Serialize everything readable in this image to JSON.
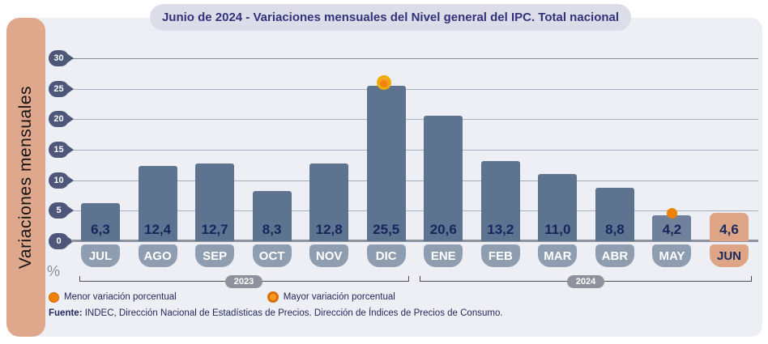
{
  "header": {
    "title": "Junio de 2024 - Variaciones mensuales del Nivel general del IPC. Total nacional"
  },
  "sidebar": {
    "label": "Variaciones mensuales"
  },
  "chart_data": {
    "type": "bar",
    "title": "Junio de 2024 - Variaciones mensuales del Nivel general del IPC. Total nacional",
    "ylabel": "Variaciones mensuales",
    "unit": "%",
    "ylim": [
      0,
      30
    ],
    "yticks": [
      0,
      5,
      10,
      15,
      20,
      25,
      30
    ],
    "grid": "horizontal",
    "categories": [
      "JUL",
      "AGO",
      "SEP",
      "OCT",
      "NOV",
      "DIC",
      "ENE",
      "FEB",
      "MAR",
      "ABR",
      "MAY",
      "JUN"
    ],
    "values": [
      6.3,
      12.4,
      12.7,
      8.3,
      12.8,
      25.5,
      20.6,
      13.2,
      11.0,
      8.8,
      4.2,
      4.6
    ],
    "value_labels": [
      "6,3",
      "12,4",
      "12,7",
      "8,3",
      "12,8",
      "25,5",
      "20,6",
      "13,2",
      "11,0",
      "8,8",
      "4,2",
      "4,6"
    ],
    "year_groups": [
      {
        "label": "2023",
        "from": "JUL",
        "to": "DIC"
      },
      {
        "label": "2024",
        "from": "ENE",
        "to": "JUN"
      }
    ],
    "annotations": {
      "max_marker_category": "DIC",
      "min_marker_category": "MAY",
      "highlight_category": "JUN",
      "muted_category": "MAY"
    }
  },
  "legend": {
    "items": [
      {
        "label": "Menor variación porcentual",
        "marker": "orange-dot-icon"
      },
      {
        "label": "Mayor variación porcentual",
        "marker": "orange-ring-icon"
      }
    ]
  },
  "source": {
    "prefix": "Fuente:",
    "text": " INDEC, Dirección Nacional de Estadísticas de Precios. Dirección de Índices de Precios de Consumo."
  },
  "colors": {
    "panel_bg": "#edeff4",
    "sidebar_bg": "#dfa78c",
    "title_pill_bg": "#dcdde9",
    "title_text": "#32327c",
    "bar": "#5d7390",
    "bar_muted": "#71819b",
    "bar_highlight": "#dda486",
    "month_pill": "#8f9db1",
    "tick_pin": "#4c577a",
    "value_text": "#16265c",
    "orange_marker": "#ef8200",
    "ring_marker": "#edae00",
    "gridline": "#a8aeba",
    "zero_line": "#8d929c",
    "year_pill": "#8d929c"
  }
}
